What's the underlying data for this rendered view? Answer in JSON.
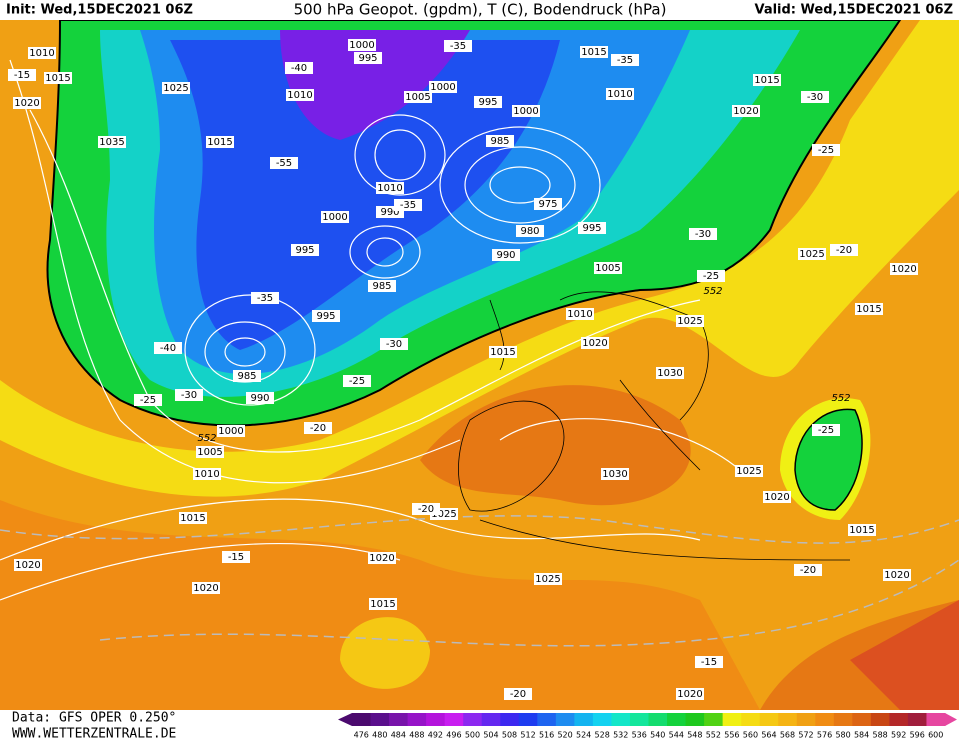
{
  "header": {
    "init": "Init: Wed,15DEC2021 06Z",
    "title": "500 hPa Geopot. (gpdm), T (C), Bodendruck (hPa)",
    "valid": "Valid: Wed,15DEC2021 06Z"
  },
  "footer": {
    "data_source": "Data: GFS OPER 0.250°",
    "website": "WWW.WETTERZENTRALE.DE"
  },
  "color_scale": {
    "values": [
      476,
      480,
      484,
      488,
      492,
      496,
      500,
      504,
      508,
      512,
      516,
      520,
      524,
      528,
      532,
      536,
      540,
      544,
      548,
      552,
      556,
      560,
      564,
      568,
      572,
      576,
      580,
      584,
      588,
      592,
      596,
      600
    ],
    "colors": [
      "#4b0a6e",
      "#5a0f8c",
      "#7814aa",
      "#9614c8",
      "#b414dc",
      "#c81ef0",
      "#8c28f0",
      "#6428f0",
      "#3c28f0",
      "#1e3cf0",
      "#1e64f0",
      "#1e8cf0",
      "#14b4f0",
      "#14d2f0",
      "#14e6c8",
      "#14e69b",
      "#14dc6e",
      "#14d23c",
      "#1ec81e",
      "#50d214",
      "#f0f014",
      "#f5dc14",
      "#f5c814",
      "#f5b414",
      "#f0a014",
      "#f08c14",
      "#e67814",
      "#dc6414",
      "#c84614",
      "#b42828",
      "#a01e3c",
      "#e646a0"
    ]
  },
  "isobar_labels": [
    1010,
    1015,
    1020,
    1025,
    1035,
    1015,
    1010,
    1000,
    995,
    1005,
    1000,
    995,
    1000,
    1015,
    1010,
    1015,
    1020,
    985,
    975,
    980,
    990,
    995,
    1005,
    1010,
    990,
    1000,
    995,
    985,
    995,
    1010,
    1015,
    1020,
    1025,
    1030,
    1025,
    1020,
    1015,
    985,
    990,
    1000,
    1005,
    1010,
    1015,
    1030,
    1025,
    1025,
    1020,
    1015,
    1020,
    1020,
    1020,
    1020,
    1025,
    1015,
    1020
  ],
  "temperature_labels": [
    -15,
    -35,
    -40,
    -35,
    -30,
    -25,
    -55,
    -35,
    -35,
    -40,
    -30,
    -25,
    -30,
    -25,
    -20,
    -30,
    -25,
    -20,
    -25,
    -20,
    -15,
    -20,
    -15,
    -20
  ],
  "height_labels": [
    552,
    552,
    552
  ]
}
